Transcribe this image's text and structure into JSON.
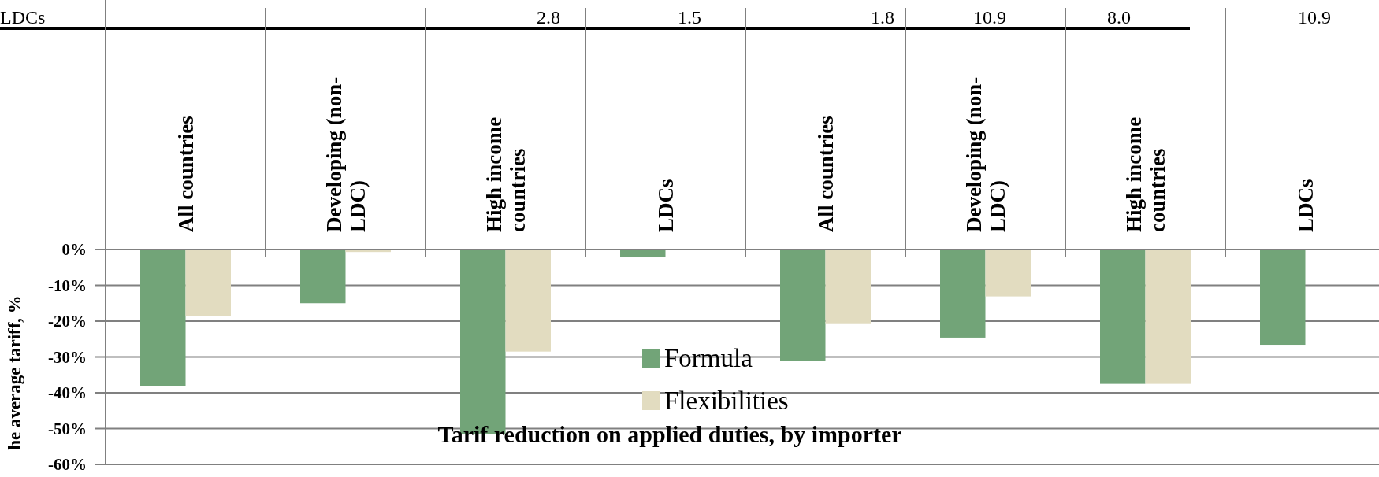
{
  "chart_data": {
    "type": "bar",
    "title": "Tarif reduction on applied duties, by importer",
    "ylabel": "he average tariff, %",
    "categories": [
      "All countries",
      "Developing (non-LDC)",
      "High income countries",
      "LDCs",
      "All countries",
      "Developing (non-LDC)",
      "High income countries",
      "LDCs"
    ],
    "series": [
      {
        "name": "Formula",
        "color": "#72a478",
        "values": [
          -38.2,
          -15,
          -51.5,
          -2.2,
          -31,
          -24.6,
          -37.5,
          -26.6
        ]
      },
      {
        "name": "Flexibilities",
        "color": "#e2dcc0",
        "values": [
          -18.5,
          -0.7,
          -28.5,
          null,
          -20.6,
          -13.1,
          -37.5,
          null
        ]
      }
    ],
    "ylim": [
      -60,
      0
    ],
    "yticks": [
      {
        "value": 0,
        "label": "0%"
      },
      {
        "value": -10,
        "label": "-10%"
      },
      {
        "value": -20,
        "label": "-20%"
      },
      {
        "value": -30,
        "label": "-30%"
      },
      {
        "value": -40,
        "label": "-40%"
      },
      {
        "value": -50,
        "label": "-50%"
      },
      {
        "value": -60,
        "label": "-60%"
      }
    ],
    "grid": "y",
    "legend": "bottom",
    "annotations": [
      "LDCs",
      "2.8",
      "1.5",
      "1.8",
      "10.9",
      "8.0",
      "10.9"
    ]
  }
}
